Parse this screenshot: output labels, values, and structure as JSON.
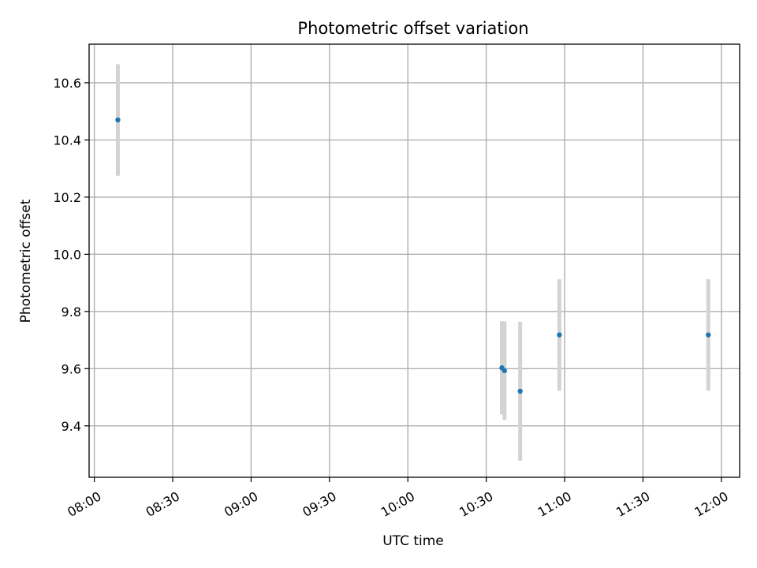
{
  "chart_data": {
    "type": "scatter",
    "title": "Photometric offset variation",
    "xlabel": "UTC time",
    "ylabel": "Photometric offset",
    "x_type": "time",
    "xlim": [
      "07:58",
      "12:07"
    ],
    "ylim": [
      9.22,
      10.735
    ],
    "x_ticks": [
      "08:00",
      "08:30",
      "09:00",
      "09:30",
      "10:00",
      "10:30",
      "11:00",
      "11:30",
      "12:00"
    ],
    "y_ticks": [
      "9.4",
      "9.6",
      "9.8",
      "10.0",
      "10.2",
      "10.4",
      "10.6"
    ],
    "grid": true,
    "point_color": "#1f77b4",
    "errorbar_color": "#d3d3d3",
    "points": [
      {
        "x": "08:09",
        "y": 10.47,
        "err": 0.195
      },
      {
        "x": "10:36",
        "y": 9.603,
        "err": 0.163
      },
      {
        "x": "10:37",
        "y": 9.593,
        "err": 0.172
      },
      {
        "x": "10:43",
        "y": 9.521,
        "err": 0.243
      },
      {
        "x": "10:58",
        "y": 9.718,
        "err": 0.195
      },
      {
        "x": "11:55",
        "y": 9.718,
        "err": 0.195
      }
    ]
  }
}
